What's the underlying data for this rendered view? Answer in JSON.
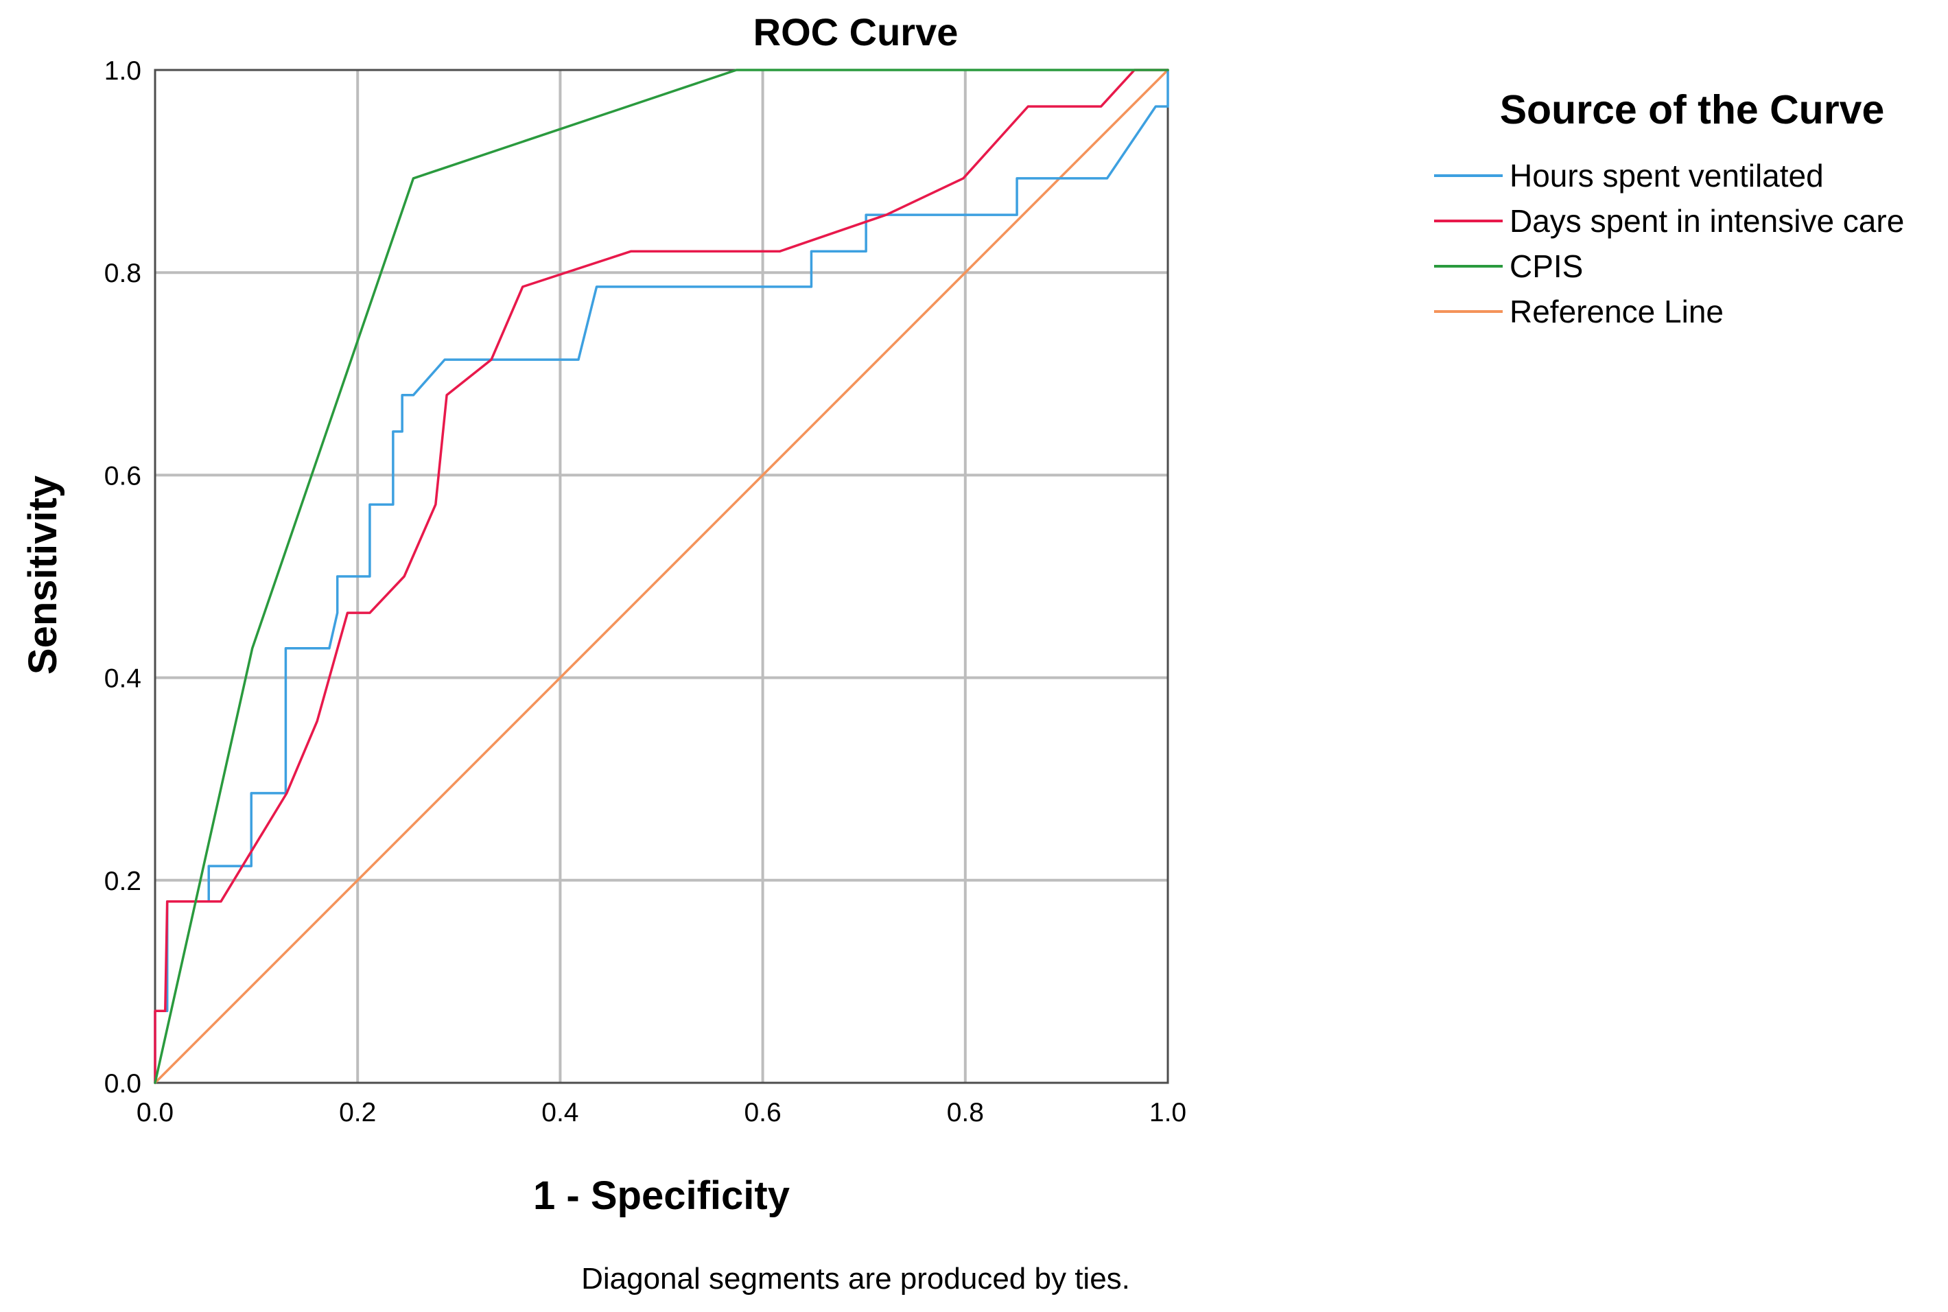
{
  "chart_data": {
    "type": "line",
    "title": "ROC Curve",
    "xlabel": "1 - Specificity",
    "ylabel": "Sensitivity",
    "xlim": [
      0,
      1
    ],
    "ylim": [
      0,
      1
    ],
    "xticks": [
      0,
      0.2,
      0.4,
      0.6,
      0.8,
      1
    ],
    "yticks": [
      0,
      0.2,
      0.4,
      0.6,
      0.8,
      1
    ],
    "xtick_labels": [
      "0.0",
      "0.2",
      "0.4",
      "0.6",
      "0.8",
      "1.0"
    ],
    "ytick_labels": [
      "0.0",
      "0.2",
      "0.4",
      "0.6",
      "0.8",
      "1.0"
    ],
    "grid": true,
    "legend": {
      "title": "Source of the Curve",
      "placement": "right"
    },
    "footnote": "Diagonal segments are produced by ties.",
    "series": [
      {
        "name": "Hours spent ventilated",
        "color": "#3da0e0",
        "points": [
          [
            0,
            0
          ],
          [
            0,
            0.071
          ],
          [
            0.012,
            0.071
          ],
          [
            0.012,
            0.179
          ],
          [
            0.053,
            0.179
          ],
          [
            0.053,
            0.214
          ],
          [
            0.095,
            0.214
          ],
          [
            0.095,
            0.286
          ],
          [
            0.129,
            0.286
          ],
          [
            0.129,
            0.429
          ],
          [
            0.172,
            0.429
          ],
          [
            0.18,
            0.464
          ],
          [
            0.18,
            0.5
          ],
          [
            0.212,
            0.5
          ],
          [
            0.212,
            0.571
          ],
          [
            0.235,
            0.571
          ],
          [
            0.235,
            0.643
          ],
          [
            0.244,
            0.643
          ],
          [
            0.244,
            0.679
          ],
          [
            0.255,
            0.679
          ],
          [
            0.286,
            0.714
          ],
          [
            0.418,
            0.714
          ],
          [
            0.436,
            0.786
          ],
          [
            0.648,
            0.786
          ],
          [
            0.648,
            0.821
          ],
          [
            0.702,
            0.821
          ],
          [
            0.702,
            0.857
          ],
          [
            0.851,
            0.857
          ],
          [
            0.851,
            0.893
          ],
          [
            0.94,
            0.893
          ],
          [
            0.988,
            0.964
          ],
          [
            1,
            0.964
          ],
          [
            1,
            1
          ]
        ]
      },
      {
        "name": "Days spent in intensive care",
        "color": "#e8194b",
        "points": [
          [
            0,
            0
          ],
          [
            0,
            0.071
          ],
          [
            0.01,
            0.071
          ],
          [
            0.012,
            0.179
          ],
          [
            0.065,
            0.179
          ],
          [
            0.13,
            0.286
          ],
          [
            0.16,
            0.357
          ],
          [
            0.19,
            0.464
          ],
          [
            0.212,
            0.464
          ],
          [
            0.246,
            0.5
          ],
          [
            0.277,
            0.571
          ],
          [
            0.288,
            0.679
          ],
          [
            0.332,
            0.714
          ],
          [
            0.363,
            0.786
          ],
          [
            0.47,
            0.821
          ],
          [
            0.617,
            0.821
          ],
          [
            0.722,
            0.857
          ],
          [
            0.798,
            0.893
          ],
          [
            0.862,
            0.964
          ],
          [
            0.934,
            0.964
          ],
          [
            0.967,
            1
          ],
          [
            1,
            1
          ]
        ]
      },
      {
        "name": "CPIS",
        "color": "#2a9a3e",
        "points": [
          [
            0,
            0
          ],
          [
            0.096,
            0.429
          ],
          [
            0.255,
            0.893
          ],
          [
            0.574,
            1
          ],
          [
            1,
            1
          ]
        ]
      },
      {
        "name": "Reference Line",
        "color": "#f4935a",
        "points": [
          [
            0,
            0
          ],
          [
            1,
            1
          ]
        ]
      }
    ]
  }
}
